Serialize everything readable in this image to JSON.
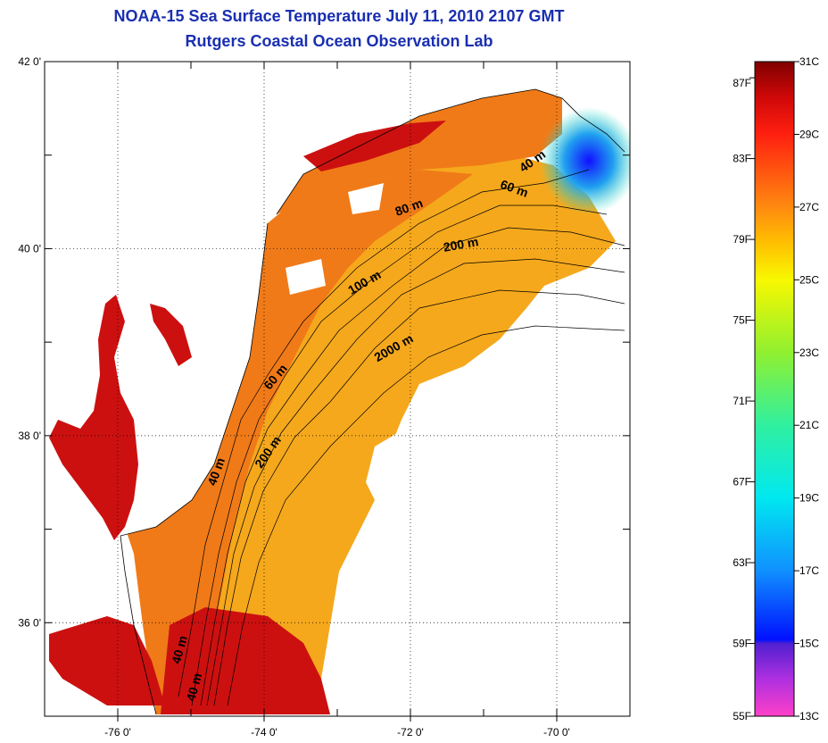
{
  "title": {
    "line1": "NOAA-15 Sea Surface Temperature July 11, 2010 2107 GMT",
    "line2": "Rutgers Coastal Ocean Observation Lab"
  },
  "map": {
    "lon_range": [
      -77.0,
      -69.0
    ],
    "lat_range": [
      35.0,
      42.0
    ],
    "lon_ticks": [
      {
        "value": -76,
        "label": "-76 0'"
      },
      {
        "value": -74,
        "label": "-74 0'"
      },
      {
        "value": -72,
        "label": "-72 0'"
      },
      {
        "value": -70,
        "label": "-70 0'"
      }
    ],
    "lat_ticks": [
      {
        "value": 42,
        "label": "42 0'"
      },
      {
        "value": 40,
        "label": "40 0'"
      },
      {
        "value": 38,
        "label": "38 0'"
      },
      {
        "value": 36,
        "label": "36 0'"
      }
    ],
    "contour_labels": [
      {
        "text": "40 m",
        "lon": -70.3,
        "lat": 40.9,
        "angle": -35
      },
      {
        "text": "60 m",
        "lon": -70.6,
        "lat": 40.6,
        "angle": 20
      },
      {
        "text": "80 m",
        "lon": -72.0,
        "lat": 40.4,
        "angle": -20
      },
      {
        "text": "200 m",
        "lon": -71.3,
        "lat": 40.0,
        "angle": -10
      },
      {
        "text": "100 m",
        "lon": -72.6,
        "lat": 39.6,
        "angle": -30
      },
      {
        "text": "2000 m",
        "lon": -72.2,
        "lat": 38.9,
        "angle": -30
      },
      {
        "text": "60 m",
        "lon": -73.8,
        "lat": 38.6,
        "angle": -50
      },
      {
        "text": "200 m",
        "lon": -73.9,
        "lat": 37.8,
        "angle": -55
      },
      {
        "text": "40 m",
        "lon": -74.6,
        "lat": 37.6,
        "angle": -70
      },
      {
        "text": "40 m",
        "lon": -75.1,
        "lat": 35.7,
        "angle": -75
      },
      {
        "text": "40 m",
        "lon": -74.9,
        "lat": 35.3,
        "angle": -75
      }
    ],
    "colors": {
      "land": "#ffffff",
      "coastline": "#000000",
      "grid": "#000000",
      "estuary": "#cc1010",
      "shelf": "#f07a18",
      "offshore": "#f5a81c",
      "cold_water": "#1a40e0"
    }
  },
  "colorbar": {
    "fahrenheit_labels": [
      {
        "label": "87F",
        "value": 87
      },
      {
        "label": "83F",
        "value": 83
      },
      {
        "label": "79F",
        "value": 79
      },
      {
        "label": "75F",
        "value": 75
      },
      {
        "label": "71F",
        "value": 71
      },
      {
        "label": "67F",
        "value": 67
      },
      {
        "label": "63F",
        "value": 63
      },
      {
        "label": "59F",
        "value": 59
      },
      {
        "label": "55F",
        "value": 55
      }
    ],
    "celsius_labels": [
      {
        "label": "31C",
        "value": 31
      },
      {
        "label": "29C",
        "value": 29
      },
      {
        "label": "27C",
        "value": 27
      },
      {
        "label": "25C",
        "value": 25
      },
      {
        "label": "23C",
        "value": 23
      },
      {
        "label": "21C",
        "value": 21
      },
      {
        "label": "19C",
        "value": 19
      },
      {
        "label": "17C",
        "value": 17
      },
      {
        "label": "15C",
        "value": 15
      },
      {
        "label": "13C",
        "value": 13
      }
    ],
    "range_c": [
      13,
      31
    ],
    "stops": [
      {
        "c": 13,
        "color": "#ff40c8"
      },
      {
        "c": 14,
        "color": "#b030e0"
      },
      {
        "c": 15,
        "color": "#5020d0"
      },
      {
        "c": 15.1,
        "color": "#0010ff"
      },
      {
        "c": 17,
        "color": "#1090ff"
      },
      {
        "c": 19,
        "color": "#00e8f0"
      },
      {
        "c": 21,
        "color": "#30f0a0"
      },
      {
        "c": 23,
        "color": "#90f030"
      },
      {
        "c": 25,
        "color": "#f8f800"
      },
      {
        "c": 26,
        "color": "#ffc000"
      },
      {
        "c": 27,
        "color": "#ff8a10"
      },
      {
        "c": 29,
        "color": "#ff2010"
      },
      {
        "c": 30,
        "color": "#d00808"
      },
      {
        "c": 31,
        "color": "#800000"
      }
    ]
  }
}
